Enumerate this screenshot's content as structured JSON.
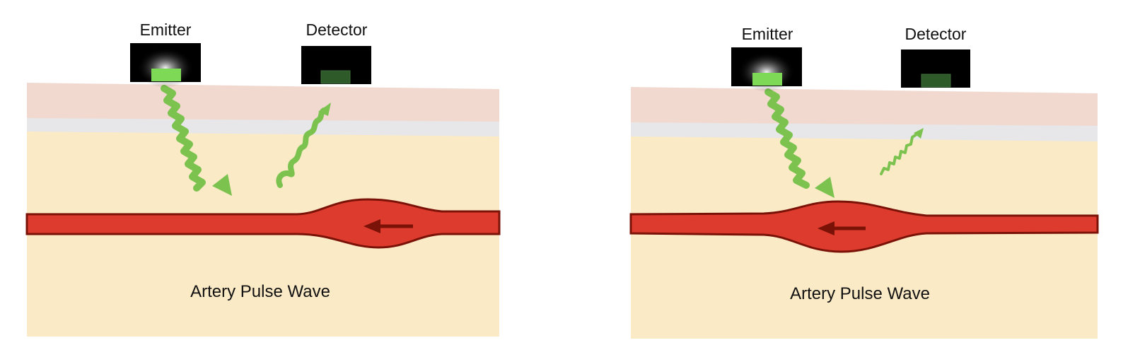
{
  "panels": [
    {
      "emitter_label": "Emitter",
      "detector_label": "Detector",
      "caption": "Artery Pulse Wave",
      "reflected_signal": "strong",
      "pulse_position": "under-detector"
    },
    {
      "emitter_label": "Emitter",
      "detector_label": "Detector",
      "caption": "Artery Pulse Wave",
      "reflected_signal": "weak",
      "pulse_position": "under-emitter"
    }
  ],
  "colors": {
    "epidermis": "#f1d9d0",
    "dermis": "#e7e6e8",
    "tissue": "#fbeac6",
    "artery_fill": "#dd3b2d",
    "artery_outline": "#7a1208",
    "flow_arrow": "#7a1208",
    "light": "#7cc24f",
    "sensor_body": "#000000",
    "emitter_led": "#7ed957",
    "detector_window": "#2e5a2a"
  }
}
